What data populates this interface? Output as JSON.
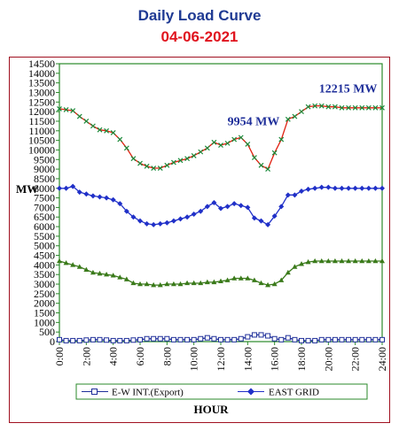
{
  "header": {
    "title": "Daily Load Curve",
    "date": "04-06-2021"
  },
  "chart_data": {
    "type": "line",
    "ylabel": "MW",
    "xlabel": "HOUR",
    "ylim": [
      0,
      14500
    ],
    "ytick_step": 500,
    "xlim": [
      0,
      24
    ],
    "x_ticks": [
      "0:00",
      "2:00",
      "4:00",
      "6:00",
      "8:00",
      "10:00",
      "12:00",
      "14:00",
      "16:00",
      "18:00",
      "20:00",
      "22:00",
      "24:00"
    ],
    "grid": false,
    "legend_position": "bottom",
    "series": [
      {
        "name": "E-W INT.(Export)",
        "color": "#1f2f9a",
        "marker": "square",
        "values": [
          100,
          50,
          50,
          50,
          80,
          100,
          100,
          80,
          50,
          50,
          50,
          80,
          100,
          150,
          150,
          150,
          150,
          100,
          100,
          100,
          100,
          150,
          200,
          150,
          100,
          100,
          100,
          150,
          250,
          350,
          350,
          300,
          150,
          100,
          200,
          100,
          50,
          50,
          50,
          100,
          100,
          100,
          100,
          100,
          100,
          100,
          100,
          100,
          100
        ]
      },
      {
        "name": "EAST GRID",
        "color": "#2030c8",
        "marker": "diamond",
        "values": [
          8000,
          8000,
          8100,
          7800,
          7700,
          7600,
          7550,
          7500,
          7400,
          7200,
          6800,
          6500,
          6300,
          6150,
          6100,
          6150,
          6200,
          6300,
          6400,
          6500,
          6650,
          6800,
          7050,
          7250,
          6950,
          7050,
          7200,
          7100,
          7000,
          6450,
          6300,
          6100,
          6550,
          7050,
          7650,
          7650,
          7850,
          7950,
          8000,
          8050,
          8050,
          8000,
          8000,
          8000,
          8000,
          8000,
          8000,
          8000,
          8000
        ]
      },
      {
        "name": "",
        "color": "#3a7a1a",
        "marker": "triangle",
        "values": [
          4200,
          4100,
          4000,
          3900,
          3750,
          3600,
          3550,
          3500,
          3450,
          3350,
          3250,
          3050,
          3000,
          3000,
          2950,
          2950,
          3000,
          3000,
          3000,
          3050,
          3050,
          3050,
          3100,
          3100,
          3150,
          3200,
          3300,
          3300,
          3300,
          3200,
          3050,
          2950,
          3000,
          3200,
          3600,
          3900,
          4050,
          4150,
          4200,
          4200,
          4200,
          4200,
          4200,
          4200,
          4200,
          4200,
          4200,
          4200,
          4200
        ]
      },
      {
        "name": "",
        "color": "#e02010",
        "marker": "cross",
        "marker_color": "#1a8a3a",
        "values": [
          12150,
          12100,
          12050,
          11750,
          11500,
          11250,
          11050,
          11000,
          10900,
          10550,
          10100,
          9550,
          9300,
          9150,
          9050,
          9050,
          9200,
          9350,
          9450,
          9550,
          9700,
          9900,
          10100,
          10400,
          10250,
          10350,
          10550,
          10650,
          10300,
          9600,
          9200,
          9000,
          9850,
          10550,
          11600,
          11750,
          12000,
          12250,
          12300,
          12300,
          12250,
          12250,
          12200,
          12200,
          12200,
          12200,
          12200,
          12200,
          12200
        ]
      }
    ],
    "annotations": [
      {
        "text": "9954 MW",
        "x": 12.5,
        "y": 11300,
        "color": "#1f2f9a"
      },
      {
        "text": "12215 MW",
        "x": 19.3,
        "y": 13000,
        "color": "#1f2f9a"
      }
    ]
  }
}
